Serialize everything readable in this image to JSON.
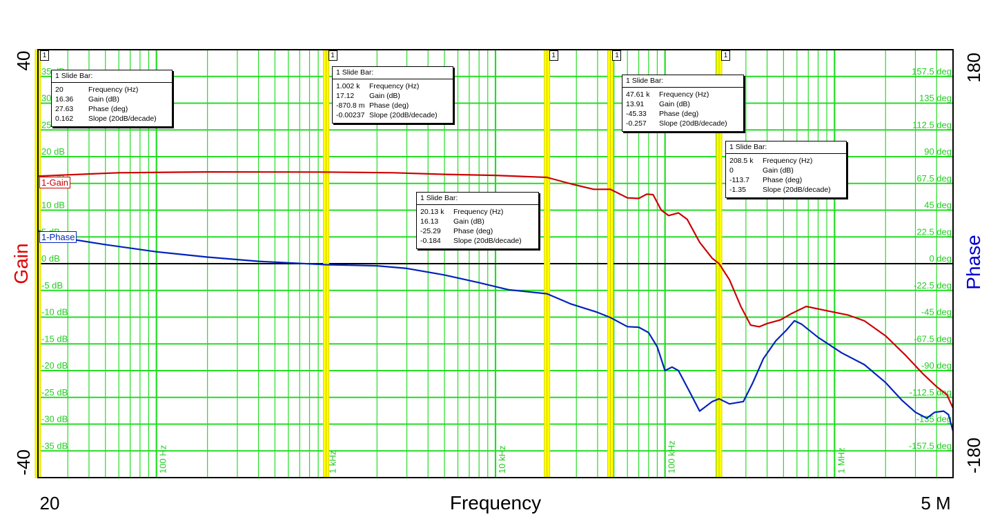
{
  "chart_data": {
    "type": "line",
    "x_scale": "log",
    "xlabel": "Frequency",
    "x_range_labels": {
      "start": "20",
      "end": "5 M"
    },
    "x_tick_labels": [
      {
        "f": 100,
        "label": "100 Hz"
      },
      {
        "f": 1000,
        "label": "1 kHz"
      },
      {
        "f": 10000,
        "label": "10 kHz"
      },
      {
        "f": 100000,
        "label": "100 kHz"
      },
      {
        "f": 1000000,
        "label": "1 MHz"
      }
    ],
    "xlim": [
      20,
      5000000
    ],
    "left_axis": {
      "label": "Gain",
      "ylim": [
        -40,
        40
      ],
      "top_label": "40",
      "bottom_label": "-40",
      "tick_labels": [
        {
          "v": 35,
          "label": "35 dB"
        },
        {
          "v": 30,
          "label": "30 dB"
        },
        {
          "v": 25,
          "label": "25 dB"
        },
        {
          "v": 20,
          "label": "20 dB"
        },
        {
          "v": 15,
          "label": "15 dB"
        },
        {
          "v": 10,
          "label": "10 dB"
        },
        {
          "v": 5,
          "label": "5 dB"
        },
        {
          "v": 0,
          "label": "0 dB"
        },
        {
          "v": -5,
          "label": "-5 dB"
        },
        {
          "v": -10,
          "label": "-10 dB"
        },
        {
          "v": -15,
          "label": "-15 dB"
        },
        {
          "v": -20,
          "label": "-20 dB"
        },
        {
          "v": -25,
          "label": "-25 dB"
        },
        {
          "v": -30,
          "label": "-30 dB"
        },
        {
          "v": -35,
          "label": "-35 dB"
        }
      ]
    },
    "right_axis": {
      "label": "Phase",
      "ylim": [
        -180,
        180
      ],
      "top_label": "180",
      "bottom_label": "-180",
      "tick_labels": [
        {
          "v": 157.5,
          "label": "157.5 deg"
        },
        {
          "v": 135,
          "label": "135 deg"
        },
        {
          "v": 112.5,
          "label": "112.5 deg"
        },
        {
          "v": 90,
          "label": "90 deg"
        },
        {
          "v": 67.5,
          "label": "67.5 deg"
        },
        {
          "v": 45,
          "label": "45 deg"
        },
        {
          "v": 22.5,
          "label": "22.5 deg"
        },
        {
          "v": 0,
          "label": "0 deg"
        },
        {
          "v": -22.5,
          "label": "-22.5 deg"
        },
        {
          "v": -45,
          "label": "-45 deg"
        },
        {
          "v": -67.5,
          "label": "-67.5 deg"
        },
        {
          "v": -90,
          "label": "-90 deg"
        },
        {
          "v": -112.5,
          "label": "-112.5 deg"
        },
        {
          "v": -135,
          "label": "-135 deg"
        },
        {
          "v": -157.5,
          "label": "-157.5 deg"
        }
      ]
    },
    "grid": true,
    "series": [
      {
        "name": "1-Gain",
        "axis": "left",
        "color": "#cc0000",
        "points": [
          [
            20,
            16.36
          ],
          [
            30,
            16.6
          ],
          [
            60,
            17.0
          ],
          [
            200,
            17.15
          ],
          [
            1002,
            17.12
          ],
          [
            2500,
            17.0
          ],
          [
            5000,
            16.7
          ],
          [
            10000,
            16.5
          ],
          [
            20130,
            16.13
          ],
          [
            28000,
            14.9
          ],
          [
            38000,
            13.9
          ],
          [
            47610,
            13.91
          ],
          [
            60000,
            12.3
          ],
          [
            70000,
            12.2
          ],
          [
            78000,
            13.0
          ],
          [
            85000,
            12.9
          ],
          [
            95000,
            10.0
          ],
          [
            105000,
            9.0
          ],
          [
            120000,
            9.5
          ],
          [
            135000,
            8.3
          ],
          [
            160000,
            4.0
          ],
          [
            190000,
            1.0
          ],
          [
            208500,
            0.0
          ],
          [
            240000,
            -3.0
          ],
          [
            280000,
            -8.0
          ],
          [
            320000,
            -11.5
          ],
          [
            360000,
            -11.8
          ],
          [
            400000,
            -11.2
          ],
          [
            480000,
            -10.5
          ],
          [
            560000,
            -9.3
          ],
          [
            680000,
            -8.0
          ],
          [
            900000,
            -8.8
          ],
          [
            1200000,
            -9.6
          ],
          [
            1500000,
            -10.7
          ],
          [
            2000000,
            -13.5
          ],
          [
            2600000,
            -17.0
          ],
          [
            3300000,
            -20.5
          ],
          [
            4000000,
            -23.0
          ],
          [
            4600000,
            -24.5
          ],
          [
            5000000,
            -27.0
          ]
        ]
      },
      {
        "name": "1-Phase",
        "axis": "right",
        "color": "#0022bb",
        "points": [
          [
            20,
            27.63
          ],
          [
            30,
            21.0
          ],
          [
            50,
            16.0
          ],
          [
            100,
            10.0
          ],
          [
            200,
            5.5
          ],
          [
            400,
            2.0
          ],
          [
            1002,
            -0.87
          ],
          [
            2000,
            -1.8
          ],
          [
            3000,
            -4.0
          ],
          [
            5000,
            -9.5
          ],
          [
            8000,
            -16.0
          ],
          [
            12000,
            -22.0
          ],
          [
            20130,
            -25.29
          ],
          [
            28000,
            -34.0
          ],
          [
            40000,
            -41.0
          ],
          [
            47610,
            -45.33
          ],
          [
            60000,
            -53.0
          ],
          [
            70000,
            -53.5
          ],
          [
            80000,
            -58.0
          ],
          [
            90000,
            -70.0
          ],
          [
            100000,
            -90.0
          ],
          [
            110000,
            -87.0
          ],
          [
            120000,
            -90.0
          ],
          [
            140000,
            -108.0
          ],
          [
            160000,
            -124.0
          ],
          [
            190000,
            -116.0
          ],
          [
            208500,
            -113.7
          ],
          [
            240000,
            -118.0
          ],
          [
            290000,
            -116.0
          ],
          [
            330000,
            -100.0
          ],
          [
            380000,
            -80.0
          ],
          [
            450000,
            -65.0
          ],
          [
            520000,
            -56.0
          ],
          [
            580000,
            -48.0
          ],
          [
            640000,
            -51.0
          ],
          [
            800000,
            -62.0
          ],
          [
            1100000,
            -75.0
          ],
          [
            1500000,
            -85.0
          ],
          [
            2000000,
            -100.0
          ],
          [
            2500000,
            -115.0
          ],
          [
            3000000,
            -125.0
          ],
          [
            3500000,
            -130.0
          ],
          [
            3900000,
            -125.0
          ],
          [
            4400000,
            -124.0
          ],
          [
            4700000,
            -127.0
          ],
          [
            5000000,
            -141.0
          ]
        ]
      }
    ],
    "cursors": [
      {
        "f": 20,
        "tag": "1"
      },
      {
        "f": 1002,
        "tag": "1"
      },
      {
        "f": 20130,
        "tag": "1"
      },
      {
        "f": 47610,
        "tag": "1"
      },
      {
        "f": 208500,
        "tag": "1"
      }
    ],
    "markers": [
      {
        "title": "1  Slide Bar:",
        "rows": [
          [
            "20",
            "Frequency (Hz)"
          ],
          [
            "16.36",
            "Gain (dB)"
          ],
          [
            "27.63",
            "Phase (deg)"
          ],
          [
            "0.162",
            "Slope (20dB/decade)"
          ]
        ]
      },
      {
        "title": "1  Slide Bar:",
        "rows": [
          [
            "1.002 k",
            "Frequency (Hz)"
          ],
          [
            "17.12",
            "Gain (dB)"
          ],
          [
            "-870.8 m",
            "Phase (deg)"
          ],
          [
            "-0.00237",
            "Slope (20dB/decade)"
          ]
        ]
      },
      {
        "title": "1  Slide Bar:",
        "rows": [
          [
            "20.13 k",
            "Frequency (Hz)"
          ],
          [
            "16.13",
            "Gain (dB)"
          ],
          [
            "-25.29",
            "Phase (deg)"
          ],
          [
            "-0.184",
            "Slope (20dB/decade)"
          ]
        ]
      },
      {
        "title": "1  Slide Bar:",
        "rows": [
          [
            "47.61 k",
            "Frequency (Hz)"
          ],
          [
            "13.91",
            "Gain (dB)"
          ],
          [
            "-45.33",
            "Phase (deg)"
          ],
          [
            "-0.257",
            "Slope (20dB/decade)"
          ]
        ]
      },
      {
        "title": "1  Slide Bar:",
        "rows": [
          [
            "208.5 k",
            "Frequency (Hz)"
          ],
          [
            "0",
            "Gain (dB)"
          ],
          [
            "-113.7",
            "Phase (deg)"
          ],
          [
            "-1.35",
            "Slope (20dB/decade)"
          ]
        ]
      }
    ]
  }
}
